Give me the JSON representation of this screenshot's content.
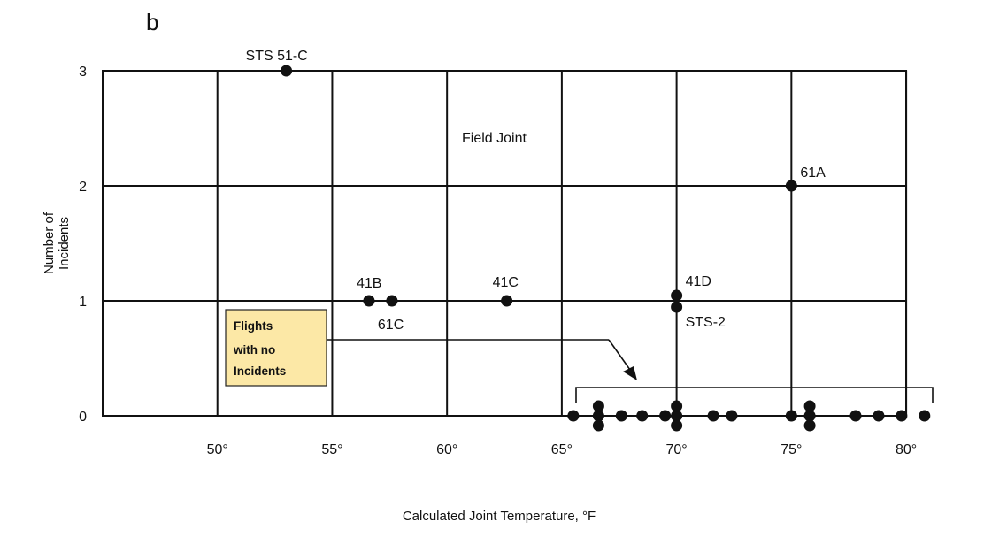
{
  "panel_letter": "b",
  "chart_data": {
    "type": "scatter",
    "title": "Field Joint",
    "xlabel": "Calculated Joint Temperature, °F",
    "ylabel_lines": [
      "Number of",
      "Incidents"
    ],
    "xlim": [
      45,
      81
    ],
    "ylim": [
      0,
      3
    ],
    "x_ticks": [
      {
        "value": 50,
        "label": "50°"
      },
      {
        "value": 55,
        "label": "55°"
      },
      {
        "value": 60,
        "label": "60°"
      },
      {
        "value": 65,
        "label": "65°"
      },
      {
        "value": 70,
        "label": "70°"
      },
      {
        "value": 75,
        "label": "75°"
      },
      {
        "value": 80,
        "label": "80°"
      }
    ],
    "y_ticks": [
      {
        "value": 0,
        "label": "0"
      },
      {
        "value": 1,
        "label": "1"
      },
      {
        "value": 2,
        "label": "2"
      },
      {
        "value": 3,
        "label": "3"
      }
    ],
    "grid": true,
    "labeled_points": [
      {
        "label": "STS 51-C",
        "x": 53,
        "y": 3
      },
      {
        "label": "61A",
        "x": 75,
        "y": 2
      },
      {
        "label": "41B",
        "x": 56.6,
        "y": 1
      },
      {
        "label": "61C",
        "x": 57.6,
        "y": 1
      },
      {
        "label": "41C",
        "x": 62.6,
        "y": 1
      },
      {
        "label": "41D",
        "x": 70,
        "y": 1
      },
      {
        "label": "STS-2",
        "x": 70,
        "y": 1
      }
    ],
    "no_incident_points": [
      {
        "x": 65.5,
        "y": 0
      },
      {
        "x": 66.6,
        "y": 0
      },
      {
        "x": 66.6,
        "y": 0
      },
      {
        "x": 66.6,
        "y": 0
      },
      {
        "x": 67.6,
        "y": 0
      },
      {
        "x": 68.5,
        "y": 0
      },
      {
        "x": 69.5,
        "y": 0
      },
      {
        "x": 70,
        "y": 0
      },
      {
        "x": 70,
        "y": 0
      },
      {
        "x": 70,
        "y": 0
      },
      {
        "x": 71.6,
        "y": 0
      },
      {
        "x": 72.4,
        "y": 0
      },
      {
        "x": 75,
        "y": 0
      },
      {
        "x": 75.8,
        "y": 0
      },
      {
        "x": 75.8,
        "y": 0
      },
      {
        "x": 75.8,
        "y": 0
      },
      {
        "x": 77.8,
        "y": 0
      },
      {
        "x": 78.8,
        "y": 0
      },
      {
        "x": 79.8,
        "y": 0
      },
      {
        "x": 80.8,
        "y": 0
      }
    ],
    "annotation": [
      "Flights",
      "with no",
      "Incidents"
    ]
  }
}
